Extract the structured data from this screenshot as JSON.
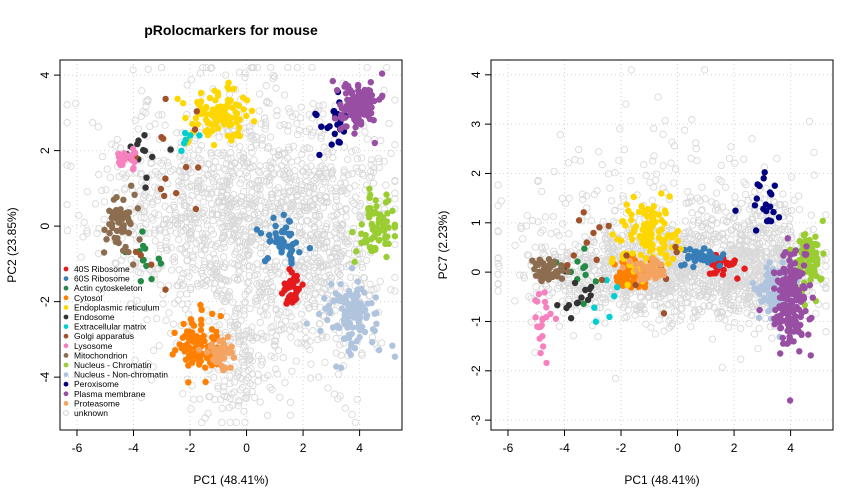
{
  "chart_data": {
    "type": "scatter",
    "title": "pRolocmarkers for mouse",
    "legend": {
      "placement": "bottom-left of left panel",
      "entries": [
        {
          "name": "40S Ribosome",
          "color": "#E41A1C"
        },
        {
          "name": "60S Ribosome",
          "color": "#377EB8"
        },
        {
          "name": "Actin cytoskeleton",
          "color": "#238B45"
        },
        {
          "name": "Cytosol",
          "color": "#FF7F00"
        },
        {
          "name": "Endoplasmic reticulum",
          "color": "#FFD700"
        },
        {
          "name": "Endosome",
          "color": "#333333"
        },
        {
          "name": "Extracellular matrix",
          "color": "#00CED1"
        },
        {
          "name": "Golgi apparatus",
          "color": "#A0522D"
        },
        {
          "name": "Lysosome",
          "color": "#F781BF"
        },
        {
          "name": "Mitochondrion",
          "color": "#8C6D4F"
        },
        {
          "name": "Nucleus - Chromatin",
          "color": "#9ACD32"
        },
        {
          "name": "Nucleus - Non-chromatin",
          "color": "#B0C4DE"
        },
        {
          "name": "Peroxisome",
          "color": "#000080"
        },
        {
          "name": "Plasma membrane",
          "color": "#984EA3"
        },
        {
          "name": "Proteasome",
          "color": "#F4A460"
        },
        {
          "name": "unknown",
          "color": "#E0E0E0"
        }
      ]
    },
    "panels": [
      {
        "xlabel": "PC1 (48.41%)",
        "ylabel": "PC2 (23.85%)",
        "xlim": [
          -6.6,
          5.5
        ],
        "ylim": [
          -5.4,
          4.4
        ],
        "xticks": [
          "-6",
          "-4",
          "-2",
          "0",
          "2",
          "4"
        ],
        "yticks": [
          "-4",
          "-2",
          "0",
          "2",
          "4"
        ],
        "grid": true,
        "clusters": [
          {
            "name": "unknown",
            "cx": -0.5,
            "cy": 0.3,
            "sx": 2.3,
            "sy": 1.7,
            "n": 1300,
            "seed": 11
          },
          {
            "name": "unknown",
            "cx": 2.8,
            "cy": -0.6,
            "sx": 1.0,
            "sy": 1.6,
            "n": 350,
            "seed": 12
          },
          {
            "name": "unknown",
            "cx": -0.5,
            "cy": -3.6,
            "sx": 0.8,
            "sy": 0.8,
            "n": 160,
            "seed": 13
          },
          {
            "name": "40S Ribosome",
            "cx": 1.6,
            "cy": -1.7,
            "sx": 0.15,
            "sy": 0.3,
            "n": 40,
            "seed": 21
          },
          {
            "name": "60S Ribosome",
            "cx": 1.3,
            "cy": -0.3,
            "sx": 0.3,
            "sy": 0.3,
            "n": 45,
            "seed": 22
          },
          {
            "name": "Actin cytoskeleton",
            "cx": -3.8,
            "cy": -0.7,
            "sx": 0.35,
            "sy": 0.5,
            "n": 12,
            "seed": 23
          },
          {
            "name": "Cytosol",
            "cx": -1.8,
            "cy": -3.2,
            "sx": 0.4,
            "sy": 0.35,
            "n": 90,
            "seed": 24
          },
          {
            "name": "Endoplasmic reticulum",
            "cx": -1.0,
            "cy": 2.9,
            "sx": 0.55,
            "sy": 0.35,
            "n": 110,
            "seed": 25
          },
          {
            "name": "Endosome",
            "cx": -3.8,
            "cy": 1.8,
            "sx": 0.5,
            "sy": 0.4,
            "n": 14,
            "seed": 26
          },
          {
            "name": "Extracellular matrix",
            "cx": -2.0,
            "cy": 2.2,
            "sx": 0.25,
            "sy": 0.15,
            "n": 6,
            "seed": 27
          },
          {
            "name": "Golgi apparatus",
            "cx": -2.5,
            "cy": 1.0,
            "sx": 1.5,
            "sy": 1.2,
            "n": 18,
            "seed": 28
          },
          {
            "name": "Lysosome",
            "cx": -4.3,
            "cy": 1.8,
            "sx": 0.22,
            "sy": 0.15,
            "n": 22,
            "seed": 29
          },
          {
            "name": "Mitochondrion",
            "cx": -4.5,
            "cy": 0.1,
            "sx": 0.3,
            "sy": 0.4,
            "n": 55,
            "seed": 30
          },
          {
            "name": "Nucleus - Chromatin",
            "cx": 4.6,
            "cy": 0.0,
            "sx": 0.3,
            "sy": 0.4,
            "n": 80,
            "seed": 31
          },
          {
            "name": "Nucleus - Non-chromatin",
            "cx": 3.7,
            "cy": -2.3,
            "sx": 0.5,
            "sy": 0.5,
            "n": 110,
            "seed": 32
          },
          {
            "name": "Peroxisome",
            "cx": 3.1,
            "cy": 2.7,
            "sx": 0.3,
            "sy": 0.35,
            "n": 25,
            "seed": 33
          },
          {
            "name": "Plasma membrane",
            "cx": 3.9,
            "cy": 3.2,
            "sx": 0.35,
            "sy": 0.35,
            "n": 140,
            "seed": 34
          },
          {
            "name": "Proteasome",
            "cx": -0.9,
            "cy": -3.4,
            "sx": 0.25,
            "sy": 0.2,
            "n": 40,
            "seed": 35
          }
        ]
      },
      {
        "xlabel": "PC1 (48.41%)",
        "ylabel": "PC7 (2.23%)",
        "xlim": [
          -6.6,
          5.5
        ],
        "ylim": [
          -3.2,
          4.3
        ],
        "xticks": [
          "-6",
          "-4",
          "-2",
          "0",
          "2",
          "4"
        ],
        "yticks": [
          "-3",
          "-2",
          "-1",
          "0",
          "1",
          "2",
          "3",
          "4"
        ],
        "grid": true,
        "clusters": [
          {
            "name": "unknown",
            "cx": -0.6,
            "cy": 0.05,
            "sx": 2.2,
            "sy": 0.5,
            "n": 1100,
            "seed": 41
          },
          {
            "name": "unknown",
            "cx": 2.9,
            "cy": 0.2,
            "sx": 1.0,
            "sy": 0.6,
            "n": 450,
            "seed": 42
          },
          {
            "name": "unknown",
            "cx": -0.5,
            "cy": 1.0,
            "sx": 2.3,
            "sy": 1.1,
            "n": 220,
            "seed": 43
          },
          {
            "name": "40S Ribosome",
            "cx": 1.5,
            "cy": 0.1,
            "sx": 0.3,
            "sy": 0.12,
            "n": 25,
            "seed": 51
          },
          {
            "name": "60S Ribosome",
            "cx": 1.0,
            "cy": 0.3,
            "sx": 0.35,
            "sy": 0.1,
            "n": 40,
            "seed": 52
          },
          {
            "name": "Actin cytoskeleton",
            "cx": -3.7,
            "cy": -0.1,
            "sx": 0.4,
            "sy": 0.25,
            "n": 12,
            "seed": 53
          },
          {
            "name": "Cytosol",
            "cx": -1.6,
            "cy": -0.05,
            "sx": 0.4,
            "sy": 0.15,
            "n": 80,
            "seed": 54
          },
          {
            "name": "Endoplasmic reticulum",
            "cx": -1.1,
            "cy": 0.7,
            "sx": 0.5,
            "sy": 0.4,
            "n": 110,
            "seed": 55
          },
          {
            "name": "Endosome",
            "cx": -3.5,
            "cy": -0.6,
            "sx": 0.4,
            "sy": 0.3,
            "n": 14,
            "seed": 56
          },
          {
            "name": "Extracellular matrix",
            "cx": -2.5,
            "cy": -0.5,
            "sx": 0.4,
            "sy": 0.3,
            "n": 6,
            "seed": 57
          },
          {
            "name": "Golgi apparatus",
            "cx": -2.0,
            "cy": 0.3,
            "sx": 1.4,
            "sy": 0.6,
            "n": 18,
            "seed": 58
          },
          {
            "name": "Lysosome",
            "cx": -4.7,
            "cy": -0.8,
            "sx": 0.2,
            "sy": 0.4,
            "n": 22,
            "seed": 59
          },
          {
            "name": "Mitochondrion",
            "cx": -4.6,
            "cy": 0.05,
            "sx": 0.35,
            "sy": 0.12,
            "n": 55,
            "seed": 60
          },
          {
            "name": "Nucleus - Chromatin",
            "cx": 4.6,
            "cy": 0.35,
            "sx": 0.3,
            "sy": 0.3,
            "n": 80,
            "seed": 61
          },
          {
            "name": "Nucleus - Non-chromatin",
            "cx": 3.5,
            "cy": -0.4,
            "sx": 0.4,
            "sy": 0.3,
            "n": 90,
            "seed": 62
          },
          {
            "name": "Peroxisome",
            "cx": 3.0,
            "cy": 1.3,
            "sx": 0.3,
            "sy": 0.3,
            "n": 20,
            "seed": 63
          },
          {
            "name": "Plasma membrane",
            "cx": 4.0,
            "cy": -0.6,
            "sx": 0.3,
            "sy": 0.55,
            "n": 160,
            "seed": 64
          },
          {
            "name": "Proteasome",
            "cx": -1.0,
            "cy": 0.05,
            "sx": 0.3,
            "sy": 0.12,
            "n": 40,
            "seed": 65
          }
        ]
      }
    ]
  }
}
